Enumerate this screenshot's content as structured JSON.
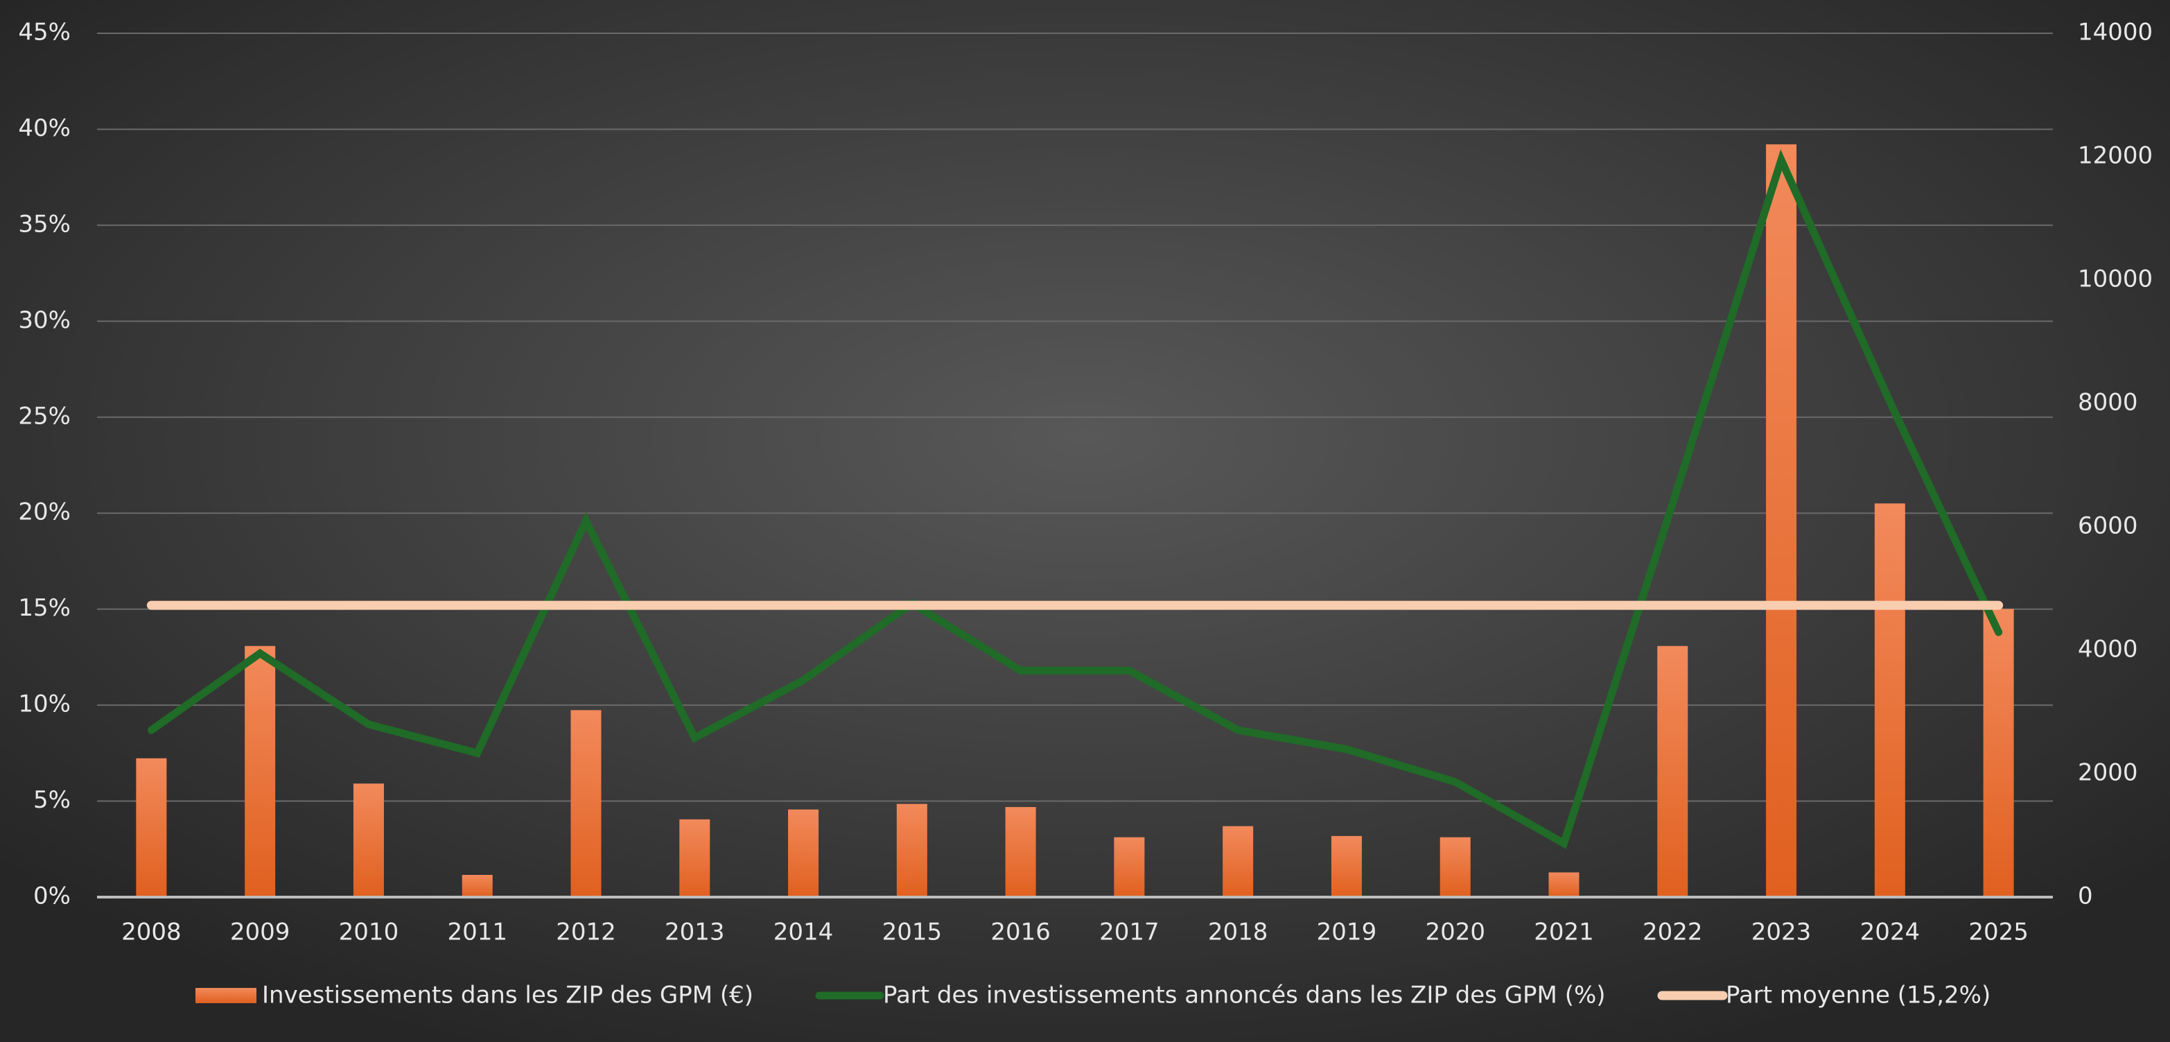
{
  "chart_data": {
    "type": "bar-line",
    "categories": [
      "2008",
      "2009",
      "2010",
      "2011",
      "2012",
      "2013",
      "2014",
      "2015",
      "2016",
      "2017",
      "2018",
      "2019",
      "2020",
      "2021",
      "2022",
      "2023",
      "2024",
      "2025"
    ],
    "series": [
      {
        "name": "Investissements dans les ZIP des GPM (€)",
        "type": "bar",
        "axis": "y2",
        "color": "#ec6f2f",
        "values": [
          2250,
          4070,
          1840,
          360,
          3030,
          1260,
          1420,
          1510,
          1460,
          970,
          1150,
          990,
          970,
          400,
          4070,
          12200,
          6380,
          4670
        ]
      },
      {
        "name": "Part des investissements annoncés dans les ZIP des GPM (%)",
        "type": "line",
        "color": "#1f6b27",
        "values": [
          8.7,
          12.7,
          9.0,
          7.5,
          19.6,
          8.3,
          11.3,
          15.3,
          11.8,
          11.8,
          8.7,
          7.7,
          6.0,
          2.8,
          20.5,
          38.4,
          25.8,
          13.8
        ]
      },
      {
        "name": "Part moyenne (15,2%)",
        "type": "line",
        "color": "#f9cdb0",
        "values": [
          15.2,
          15.2,
          15.2,
          15.2,
          15.2,
          15.2,
          15.2,
          15.2,
          15.2,
          15.2,
          15.2,
          15.2,
          15.2,
          15.2,
          15.2,
          15.2,
          15.2,
          15.2
        ]
      }
    ],
    "ylim": [
      0,
      45
    ],
    "yticks": [
      {
        "value": 0,
        "label": "0%"
      },
      {
        "value": 5,
        "label": "5%"
      },
      {
        "value": 10,
        "label": "10%"
      },
      {
        "value": 15,
        "label": "15%"
      },
      {
        "value": 20,
        "label": "20%"
      },
      {
        "value": 25,
        "label": "25%"
      },
      {
        "value": 30,
        "label": "30%"
      },
      {
        "value": 35,
        "label": "35%"
      },
      {
        "value": 40,
        "label": "40%"
      },
      {
        "value": 45,
        "label": "45%"
      }
    ],
    "y2lim": [
      0,
      14000
    ],
    "y2ticks": [
      0,
      2000,
      4000,
      6000,
      8000,
      10000,
      12000,
      14000
    ],
    "grid": true,
    "legend": "bottom"
  }
}
